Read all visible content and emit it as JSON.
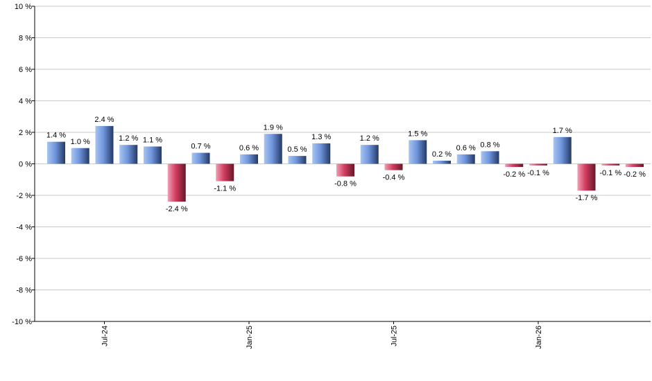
{
  "chart_data": {
    "type": "bar",
    "title": "",
    "xlabel": "",
    "ylabel": "",
    "ylim": [
      -10,
      10
    ],
    "y_ticks": [
      10,
      8,
      6,
      4,
      2,
      0,
      -2,
      -4,
      -6,
      -8,
      -10
    ],
    "y_tick_labels": [
      "10 %",
      "8 %",
      "6 %",
      "4 %",
      "2 %",
      "0 %",
      "-2 %",
      "-4 %",
      "-6 %",
      "-8 %",
      "-10 %"
    ],
    "grid": true,
    "legend": "none",
    "value_suffix": " %",
    "values": [
      1.4,
      1.0,
      2.4,
      1.2,
      1.1,
      -2.4,
      0.7,
      -1.1,
      0.6,
      1.9,
      0.5,
      1.3,
      -0.8,
      1.2,
      -0.4,
      1.5,
      0.2,
      0.6,
      0.8,
      -0.2,
      -0.1,
      1.7,
      -1.7,
      -0.1,
      -0.2
    ],
    "x_tick_labels": [
      {
        "bar_index": 2,
        "label": "Jul-24"
      },
      {
        "bar_index": 8,
        "label": "Jan-25"
      },
      {
        "bar_index": 14,
        "label": "Jul-25"
      },
      {
        "bar_index": 20,
        "label": "Jan-26"
      }
    ],
    "colors": {
      "positive_light": "#a8c4f0",
      "positive_mid": "#6f95dd",
      "positive_dark": "#243a66",
      "negative_light": "#f0a0b4",
      "negative_mid": "#d23c5f",
      "negative_dark": "#661828",
      "grid": "#c8c8c8",
      "axis": "#000000"
    }
  }
}
